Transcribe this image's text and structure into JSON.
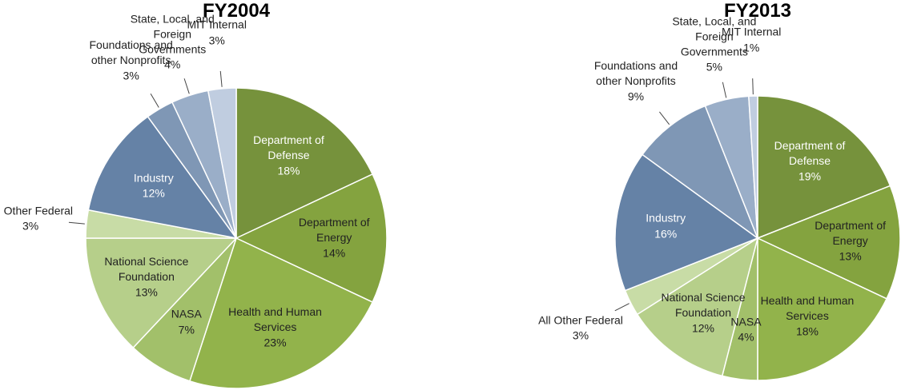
{
  "chart_data": [
    {
      "type": "pie",
      "title": "FY2004",
      "categories": [
        "Department of Defense",
        "Department of Energy",
        "Health and Human Services",
        "NASA",
        "National Science Foundation",
        "All Other Federal",
        "Industry",
        "Foundations and other Nonprofits",
        "State, Local, and Foreign Governments",
        "MIT Internal"
      ],
      "values": [
        18,
        14,
        23,
        7,
        13,
        3,
        12,
        3,
        4,
        3
      ],
      "value_labels": [
        "18%",
        "14%",
        "23%",
        "7%",
        "13%",
        "3%",
        "12%",
        "3%",
        "4%",
        "3%"
      ],
      "colors": [
        "#76923c",
        "#84a33f",
        "#92b34b",
        "#a2c06a",
        "#b6cf8a",
        "#c8dca6",
        "#6582a6",
        "#7f97b5",
        "#9aaec8",
        "#c0cde0"
      ]
    },
    {
      "type": "pie",
      "title": "FY2013",
      "categories": [
        "Department of Defense",
        "Department of Energy",
        "Health and Human Services",
        "NASA",
        "National Science Foundation",
        "All Other Federal",
        "Industry",
        "Foundations and other Nonprofits",
        "State, Local, and Foreign Governments",
        "MIT Internal"
      ],
      "values": [
        19,
        13,
        18,
        4,
        12,
        3,
        16,
        9,
        5,
        1
      ],
      "value_labels": [
        "19%",
        "13%",
        "18%",
        "4%",
        "12%",
        "3%",
        "16%",
        "9%",
        "5%",
        "1%"
      ],
      "colors": [
        "#76923c",
        "#84a33f",
        "#92b34b",
        "#a2c06a",
        "#b6cf8a",
        "#c8dca6",
        "#6582a6",
        "#7f97b5",
        "#9aaec8",
        "#c0cde0"
      ]
    }
  ]
}
